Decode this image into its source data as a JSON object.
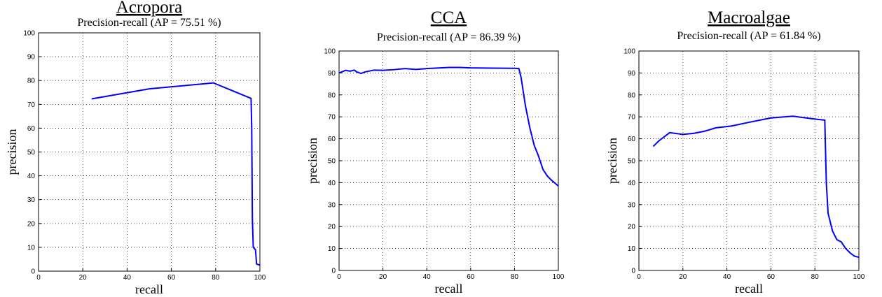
{
  "chart_data": [
    {
      "type": "line",
      "title": "Acropora",
      "subtitle": "Precision-recall (AP = 75.51 %)",
      "xlabel": "recall",
      "ylabel": "precision",
      "x": [
        24,
        50,
        79,
        96,
        96.3,
        96.6,
        97,
        98,
        98.5,
        100
      ],
      "values": [
        72.3,
        76.5,
        79,
        72.5,
        60,
        22,
        10,
        9,
        3,
        2.5
      ],
      "color": "#0000ff",
      "xlim": [
        0,
        100
      ],
      "ylim": [
        0,
        100
      ],
      "xticks": [
        0,
        20,
        40,
        60,
        80,
        100
      ],
      "yticks": [
        0,
        10,
        20,
        30,
        40,
        50,
        60,
        70,
        80,
        90,
        100
      ],
      "grid": true
    },
    {
      "type": "line",
      "title": "CCA",
      "subtitle": "Precision-recall (AP = 86.39 %)",
      "xlabel": "recall",
      "ylabel": "precision",
      "x": [
        0,
        3,
        5,
        7,
        8,
        10,
        12,
        16,
        20,
        25,
        30,
        35,
        40,
        50,
        55,
        60,
        70,
        80,
        82,
        83,
        85,
        87,
        89,
        91,
        93,
        95,
        97,
        100
      ],
      "values": [
        90,
        91.2,
        90.8,
        91.3,
        90.5,
        89.8,
        90.5,
        91.3,
        91.2,
        91.5,
        92,
        91.6,
        92,
        92.5,
        92.5,
        92.3,
        92.2,
        92.1,
        92,
        88,
        75,
        65,
        57,
        52,
        46,
        43,
        41,
        38.5
      ],
      "color": "#0000ff",
      "xlim": [
        0,
        100
      ],
      "ylim": [
        0,
        100
      ],
      "xticks": [
        0,
        20,
        40,
        60,
        80,
        100
      ],
      "yticks": [
        0,
        10,
        20,
        30,
        40,
        50,
        60,
        70,
        80,
        90,
        100
      ],
      "grid": true
    },
    {
      "type": "line",
      "title": "Macroalgae",
      "subtitle": "Precision-recall (AP = 61.84 %)",
      "xlabel": "recall",
      "ylabel": "precision",
      "x": [
        6.5,
        9,
        14,
        20,
        25,
        30,
        35,
        42,
        50,
        60,
        70,
        80,
        84.5,
        84.8,
        85.2,
        86,
        88,
        90,
        92,
        94,
        96,
        98,
        100
      ],
      "values": [
        56.5,
        59,
        62.8,
        62,
        62.5,
        63.5,
        65,
        65.8,
        67.5,
        69.5,
        70.3,
        69,
        68.5,
        56,
        40,
        26,
        18,
        14,
        13,
        10,
        8,
        6.5,
        6
      ],
      "color": "#0000ff",
      "xlim": [
        0,
        100
      ],
      "ylim": [
        0,
        100
      ],
      "xticks": [
        0,
        20,
        40,
        60,
        80,
        100
      ],
      "yticks": [
        0,
        10,
        20,
        30,
        40,
        50,
        60,
        70,
        80,
        90,
        100
      ],
      "grid": true
    }
  ]
}
